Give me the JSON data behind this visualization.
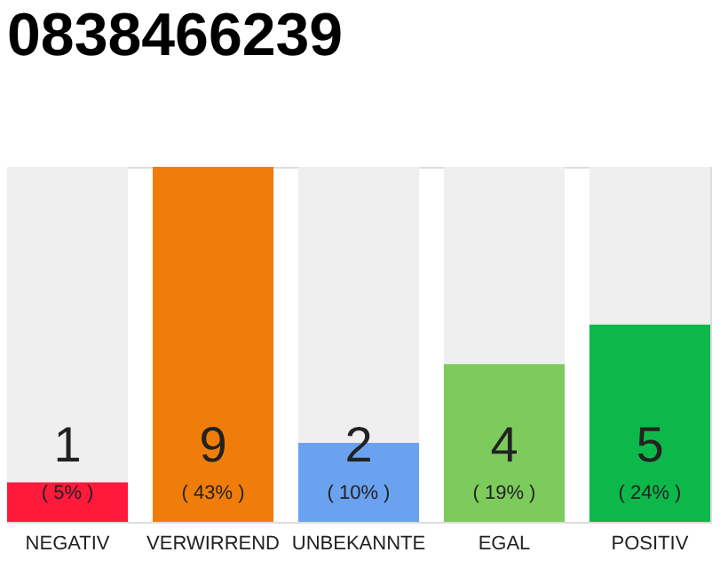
{
  "chart_data": {
    "type": "bar",
    "title": "0838466239",
    "categories": [
      "NEGATIV",
      "VERWIRREND",
      "UNBEKANNTE",
      "EGAL",
      "POSITIV"
    ],
    "values": [
      1,
      9,
      2,
      4,
      5
    ],
    "colors": [
      "#ff1a3c",
      "#f07d0a",
      "#6aa2f0",
      "#7dcb5c",
      "#0db84a"
    ],
    "ylim": [
      0,
      9
    ],
    "data_labels": true,
    "annotations": [
      "( 5% )",
      "( 43% )",
      "( 10% )",
      "( 19% )",
      "( 24% )"
    ],
    "grid": false
  }
}
